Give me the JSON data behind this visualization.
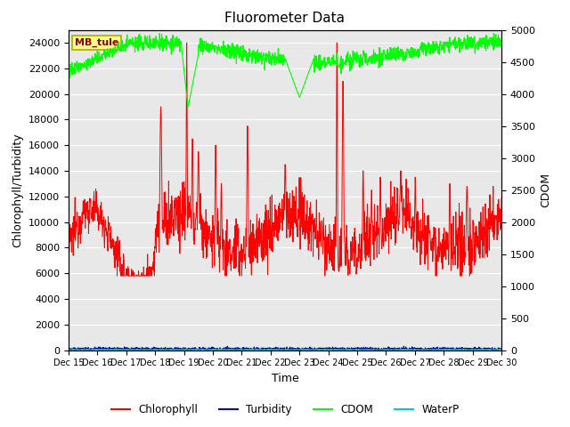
{
  "title": "Fluorometer Data",
  "xlabel": "Time",
  "ylabel_left": "Chlorophyll/Turbidity",
  "ylabel_right": "CDOM",
  "station_label": "MB_tule",
  "ylim_left": [
    0,
    25000
  ],
  "ylim_right": [
    0,
    5000
  ],
  "yticks_left": [
    0,
    2000,
    4000,
    6000,
    8000,
    10000,
    12000,
    14000,
    16000,
    18000,
    20000,
    22000,
    24000
  ],
  "yticks_right": [
    0,
    500,
    1000,
    1500,
    2000,
    2500,
    3000,
    3500,
    4000,
    4500,
    5000
  ],
  "xtick_labels": [
    "Dec 15",
    "Dec 16",
    "Dec 17",
    "Dec 18",
    "Dec 19",
    "Dec 20",
    "Dec 21",
    "Dec 22",
    "Dec 23",
    "Dec 24",
    "Dec 25",
    "Dec 26",
    "Dec 27",
    "Dec 28",
    "Dec 29",
    "Dec 30"
  ],
  "colors": {
    "chlorophyll": "#ff0000",
    "turbidity": "#0000cc",
    "cdom": "#00ff00",
    "waterp": "#00cccc"
  },
  "legend_entries": [
    "Chlorophyll",
    "Turbidity",
    "CDOM",
    "WaterP"
  ],
  "fig_bg_color": "#ffffff",
  "plot_bg_color": "#e8e8e8",
  "grid_color": "#ffffff",
  "title_fontsize": 11,
  "label_fontsize": 9,
  "tick_fontsize": 8
}
